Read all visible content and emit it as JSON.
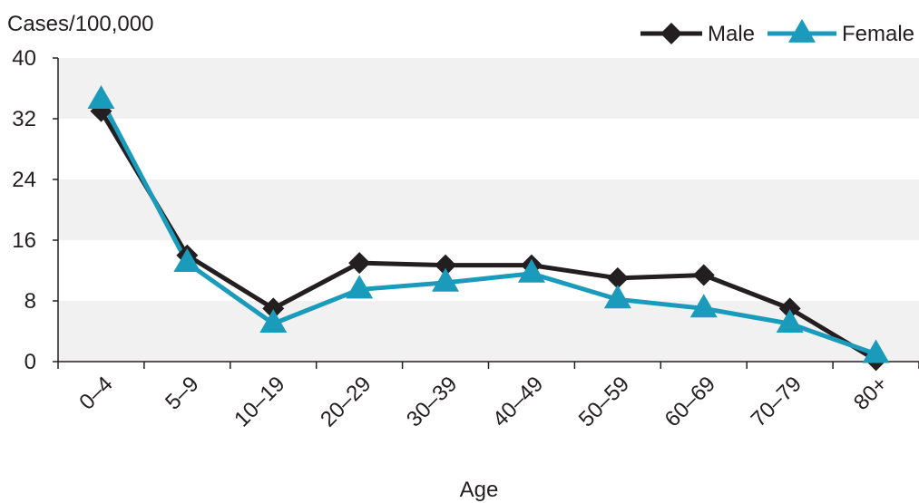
{
  "chart_data": {
    "type": "line",
    "ylabel": "Cases/100,000",
    "xlabel": "Age",
    "ylim": [
      0,
      40
    ],
    "yticks": [
      0,
      8,
      16,
      24,
      32,
      40
    ],
    "grid": "alternating horizontal bands",
    "legend_position": "top-right",
    "categories": [
      "0–4",
      "5–9",
      "10–19",
      "20–29",
      "30–39",
      "40–49",
      "50–59",
      "60–69",
      "70–79",
      "80+"
    ],
    "series": [
      {
        "name": "Male",
        "color": "#231f20",
        "marker": "diamond",
        "values": [
          33.0,
          14.0,
          7.0,
          13.0,
          12.7,
          12.7,
          11.0,
          11.4,
          7.0,
          0.2
        ]
      },
      {
        "name": "Female",
        "color": "#1a9bbb",
        "marker": "triangle",
        "values": [
          34.5,
          13.0,
          5.0,
          9.5,
          10.4,
          11.6,
          8.2,
          7.0,
          5.0,
          1.0
        ]
      }
    ]
  }
}
